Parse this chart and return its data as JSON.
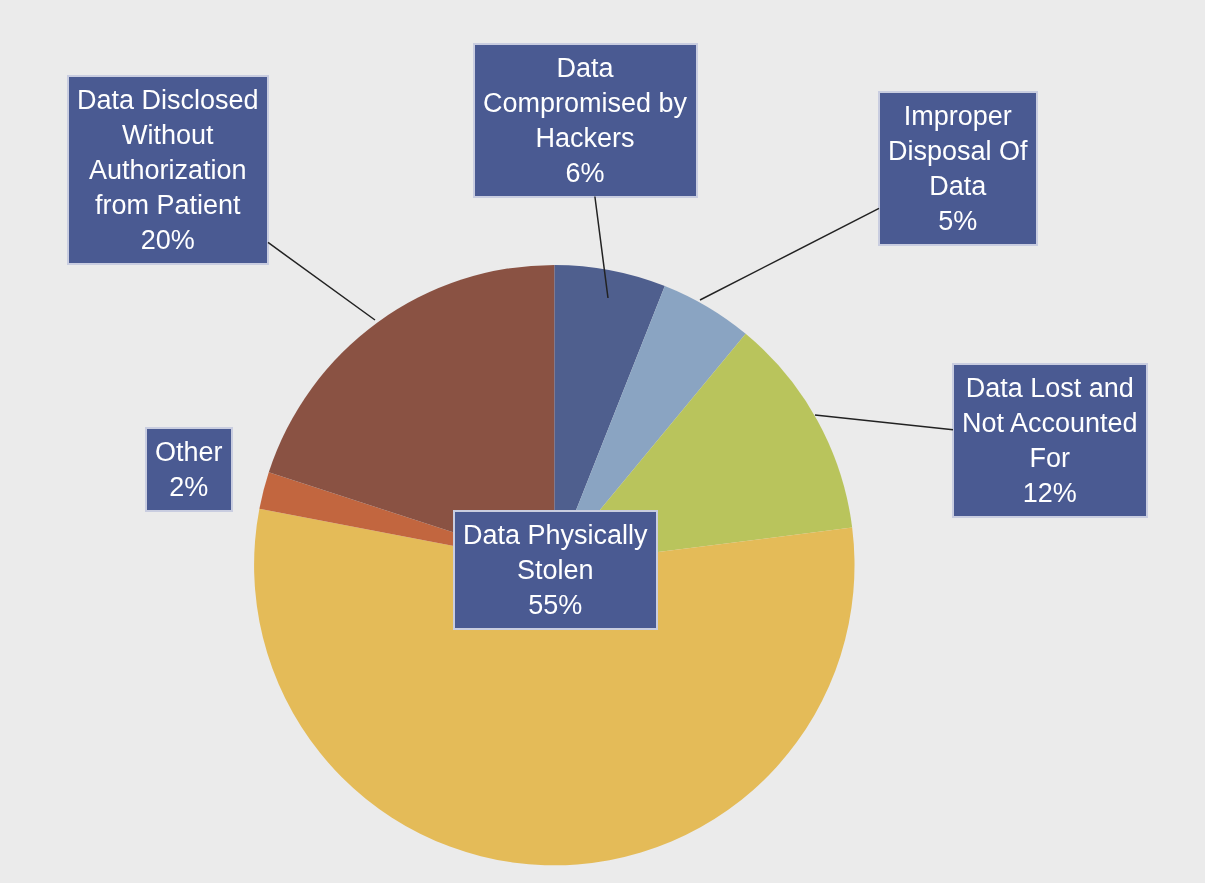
{
  "chart_data": {
    "type": "pie",
    "categories": [
      "Data Compromised by Hackers",
      "Improper Disposal Of Data",
      "Data Lost and Not Accounted For",
      "Data Physically Stolen",
      "Other",
      "Data Disclosed Without Authorization from Patient"
    ],
    "values": [
      6,
      5,
      12,
      55,
      2,
      20
    ],
    "value_labels": [
      "6%",
      "5%",
      "12%",
      "55%",
      "2%",
      "20%"
    ],
    "colors": [
      "#4f5f8e",
      "#8aa4c2",
      "#b9c45c",
      "#e4bb58",
      "#c2663f",
      "#8a5243"
    ]
  }
}
